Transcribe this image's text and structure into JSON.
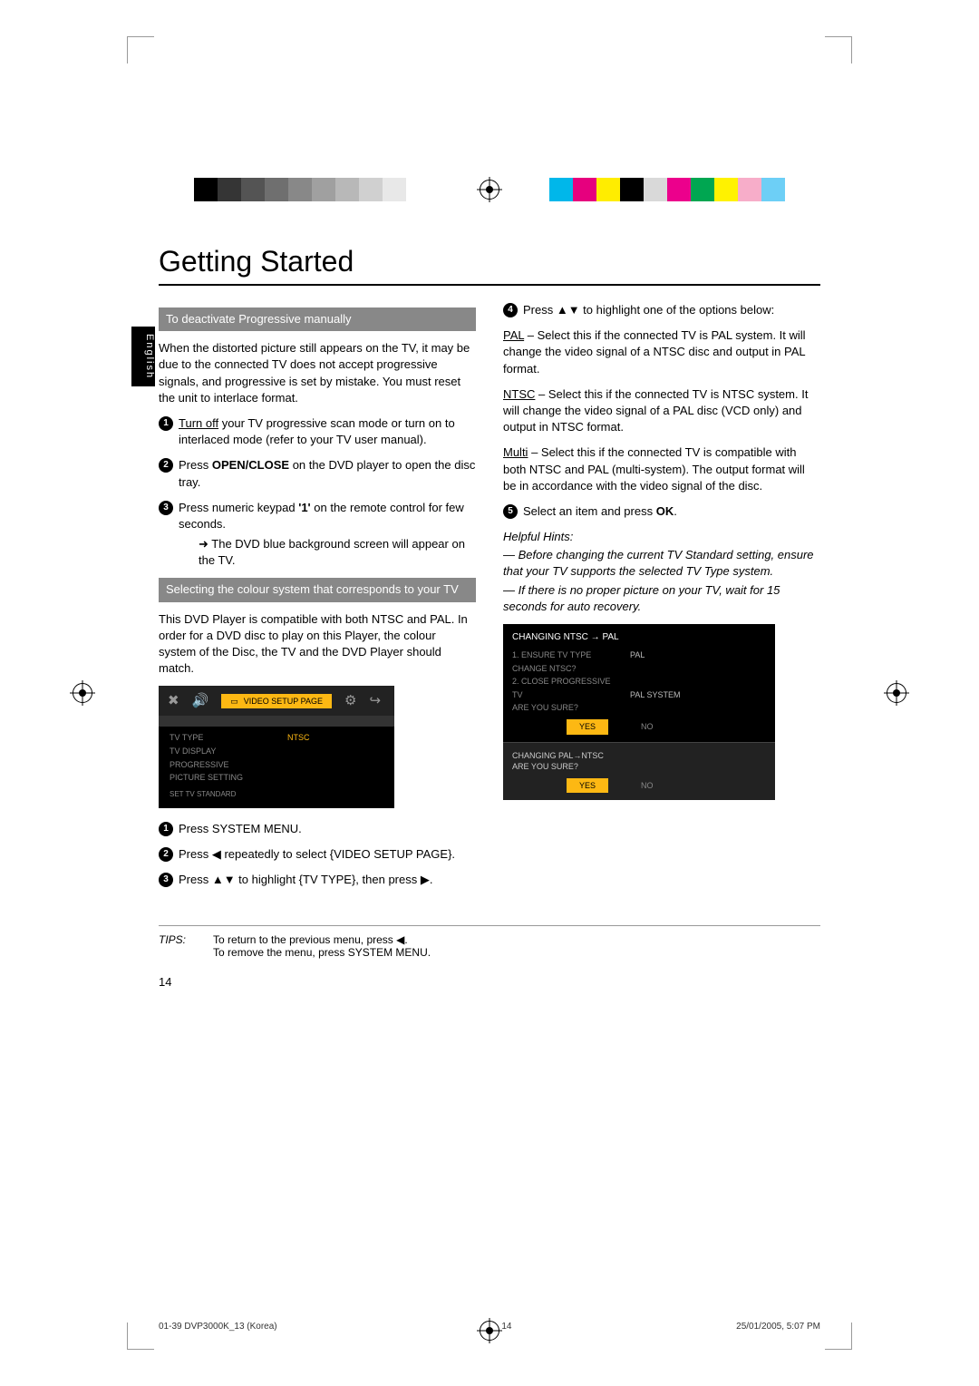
{
  "colorbar_left": [
    "#000000",
    "#353535",
    "#545454",
    "#6f6f6f",
    "#888888",
    "#a0a0a0",
    "#b8b8b8",
    "#d0d0d0",
    "#e8e8e8",
    "#ffffff"
  ],
  "colorbar_right": [
    "#00b7ea",
    "#e6007e",
    "#ffed00",
    "#000000",
    "#d9d9d9",
    "#ec008c",
    "#00a651",
    "#fff200",
    "#f7adc9",
    "#6dcff6"
  ],
  "side_tab": "English",
  "title": "Getting Started",
  "left": {
    "bar1": "To deactivate Progressive manually",
    "intro": "When the distorted picture still appears on the TV, it may be due to the connected TV does not accept progressive signals, and progressive is set by mistake. You must reset the unit to interlace format.",
    "s1a": "Turn off",
    "s1b": " your TV progressive scan mode or turn on to interlaced mode (refer to your TV user manual).",
    "s2a": "Press ",
    "s2b": "OPEN/CLOSE",
    "s2c": " on the DVD player to open the disc tray.",
    "s3a": "Press numeric keypad ",
    "s3b": "'1'",
    "s3c": " on the remote control for few seconds.",
    "s3arrow": "➜ The DVD blue background screen will appear on the TV.",
    "bar2": "Selecting the colour system that corresponds to your TV",
    "p2": "This DVD Player is compatible with both NTSC and PAL. In order for a DVD disc to play on this Player, the colour system of the Disc, the TV and the DVD Player should match.",
    "menu": {
      "icons_label": "VIDEO SETUP PAGE",
      "rows": [
        {
          "k": "TV TYPE",
          "v": "NTSC",
          "hi": true
        },
        {
          "k": "TV DISPLAY",
          "v": ""
        },
        {
          "k": "PROGRESSIVE",
          "v": ""
        },
        {
          "k": "PICTURE SETTING",
          "v": ""
        }
      ],
      "foot": "SET TV STANDARD"
    },
    "s_b1": "Press SYSTEM MENU.",
    "s_b2": "Press ◀ repeatedly to select {VIDEO SETUP PAGE}.",
    "s_b3": "Press ▲▼ to highlight {TV TYPE}, then press ▶."
  },
  "right": {
    "s4": "Press ▲▼ to highlight one of the options below:",
    "pal_l": "PAL",
    "pal": " – Select this if the connected TV is PAL system. It will change the video signal of a NTSC disc and output in PAL format.",
    "ntsc_l": "NTSC",
    "ntsc": " – Select this if the connected TV is NTSC system. It will change the video signal of a PAL disc (VCD only) and output in NTSC format.",
    "multi_l": "Multi",
    "multi": " – Select this if the connected TV is compatible with both NTSC and PAL (multi-system). The output format will be in accordance with the video signal of the disc.",
    "s5a": "Select an item and press ",
    "s5b": "OK",
    "s5c": ".",
    "hints_h": "Helpful Hints:",
    "hint1": "— Before changing the current TV Standard setting, ensure that your TV supports the selected TV Type system.",
    "hint2": "— If there is no proper picture on your TV, wait for 15 seconds for auto recovery.",
    "tvfig": {
      "hdr": "CHANGING NTSC → PAL",
      "r1k": "1. ENSURE TV TYPE",
      "r1v": "PAL",
      "r2k": "CHANGE NTSC?",
      "r2v": "",
      "r3k": "2. CLOSE PROGRESSIVE",
      "r3v": "",
      "r4k": "TV",
      "r4v": "PAL SYSTEM",
      "r5k": "ARE YOU SURE?",
      "r5v": "",
      "btn_yes": "YES",
      "btn_no": "NO",
      "bot1": "CHANGING PAL→NTSC",
      "bot2": "ARE YOU SURE?"
    }
  },
  "tips_label": "TIPS:",
  "tips_text1": "To return to the previous menu, press ◀.",
  "tips_text2": "To remove the menu, press SYSTEM MENU.",
  "page_num": "14",
  "footer_left": "01-39 DVP3000K_13 (Korea)",
  "footer_mid": "14",
  "footer_right": "25/01/2005, 5:07 PM"
}
